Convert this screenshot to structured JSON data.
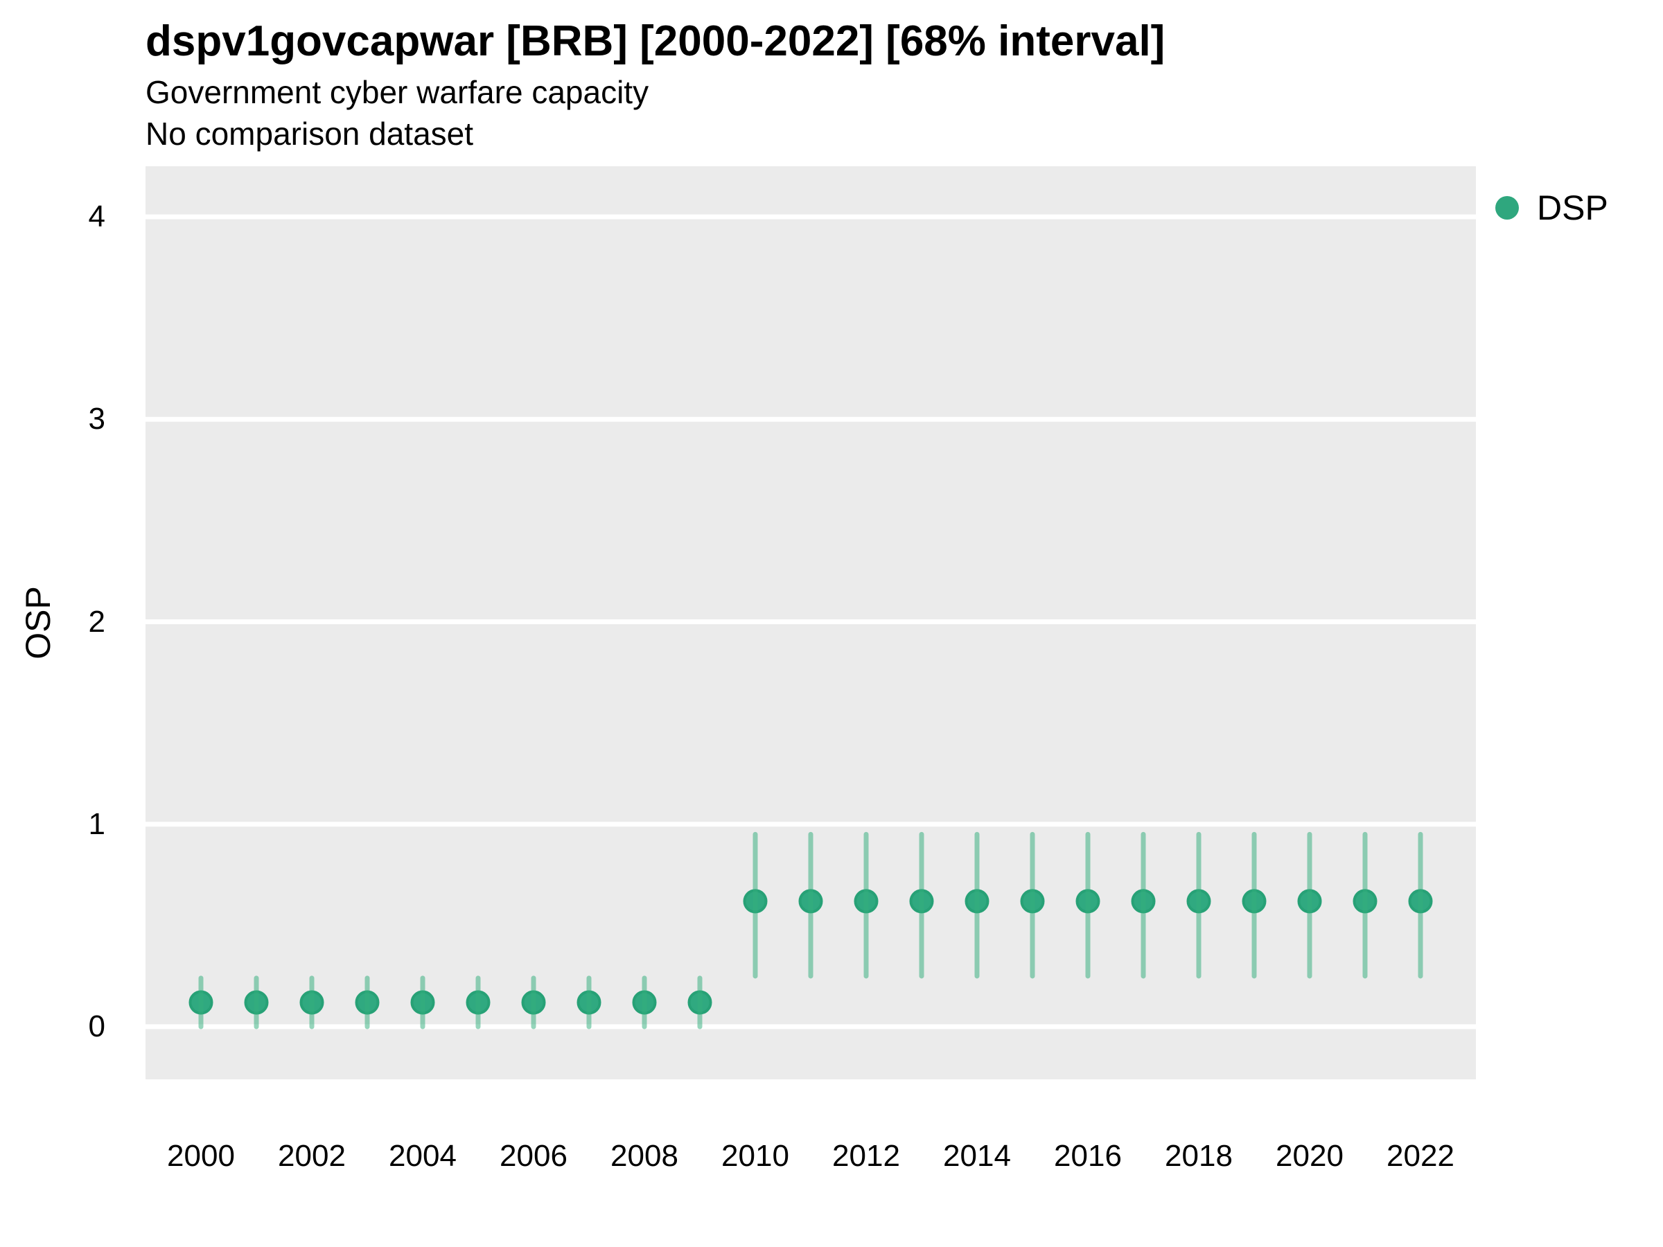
{
  "header": {
    "title": "dspv1govcapwar [BRB] [2000-2022] [68% interval]",
    "subtitle": "Government cyber warfare capacity",
    "note": "No comparison dataset"
  },
  "legend": {
    "items": [
      {
        "label": "DSP",
        "color": "#2FA77E"
      }
    ]
  },
  "colors": {
    "panel_background": "#EBEBEB",
    "gridline": "#FFFFFF",
    "point_fill": "#30A980",
    "point_stroke": "#27A176",
    "interval_stroke": "rgba(51,175,125,0.52)",
    "text": "#000000"
  },
  "chart_data": {
    "type": "scatter",
    "subtype": "pointrange",
    "title": "dspv1govcapwar [BRB] [2000-2022] [68% interval]",
    "subtitle": "Government cyber warfare capacity",
    "note": "No comparison dataset",
    "xlabel": "",
    "ylabel": "OSP",
    "xlim": [
      1999,
      2023
    ],
    "ylim": [
      -0.26,
      4.25
    ],
    "xticks": [
      2000,
      2002,
      2004,
      2006,
      2008,
      2010,
      2012,
      2014,
      2016,
      2018,
      2020,
      2022
    ],
    "yticks": [
      0,
      1,
      2,
      3,
      4
    ],
    "grid": "horizontal-major-only",
    "legend_position": "right-top",
    "interval_level": "68%",
    "series": [
      {
        "name": "DSP",
        "points": [
          {
            "year": 2000,
            "est": 0.12,
            "lo": 0.0,
            "hi": 0.24
          },
          {
            "year": 2001,
            "est": 0.12,
            "lo": 0.0,
            "hi": 0.24
          },
          {
            "year": 2002,
            "est": 0.12,
            "lo": 0.0,
            "hi": 0.24
          },
          {
            "year": 2003,
            "est": 0.12,
            "lo": 0.0,
            "hi": 0.24
          },
          {
            "year": 2004,
            "est": 0.12,
            "lo": 0.0,
            "hi": 0.24
          },
          {
            "year": 2005,
            "est": 0.12,
            "lo": 0.0,
            "hi": 0.24
          },
          {
            "year": 2006,
            "est": 0.12,
            "lo": 0.0,
            "hi": 0.24
          },
          {
            "year": 2007,
            "est": 0.12,
            "lo": 0.0,
            "hi": 0.24
          },
          {
            "year": 2008,
            "est": 0.12,
            "lo": 0.0,
            "hi": 0.24
          },
          {
            "year": 2009,
            "est": 0.12,
            "lo": 0.0,
            "hi": 0.24
          },
          {
            "year": 2010,
            "est": 0.62,
            "lo": 0.25,
            "hi": 0.95
          },
          {
            "year": 2011,
            "est": 0.62,
            "lo": 0.25,
            "hi": 0.95
          },
          {
            "year": 2012,
            "est": 0.62,
            "lo": 0.25,
            "hi": 0.95
          },
          {
            "year": 2013,
            "est": 0.62,
            "lo": 0.25,
            "hi": 0.95
          },
          {
            "year": 2014,
            "est": 0.62,
            "lo": 0.25,
            "hi": 0.95
          },
          {
            "year": 2015,
            "est": 0.62,
            "lo": 0.25,
            "hi": 0.95
          },
          {
            "year": 2016,
            "est": 0.62,
            "lo": 0.25,
            "hi": 0.95
          },
          {
            "year": 2017,
            "est": 0.62,
            "lo": 0.25,
            "hi": 0.95
          },
          {
            "year": 2018,
            "est": 0.62,
            "lo": 0.25,
            "hi": 0.95
          },
          {
            "year": 2019,
            "est": 0.62,
            "lo": 0.25,
            "hi": 0.95
          },
          {
            "year": 2020,
            "est": 0.62,
            "lo": 0.25,
            "hi": 0.95
          },
          {
            "year": 2021,
            "est": 0.62,
            "lo": 0.25,
            "hi": 0.95
          },
          {
            "year": 2022,
            "est": 0.62,
            "lo": 0.25,
            "hi": 0.95
          }
        ]
      }
    ]
  }
}
